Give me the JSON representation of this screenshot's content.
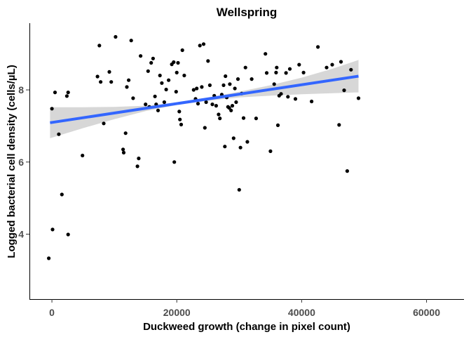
{
  "chart_data": {
    "type": "scatter",
    "title": "Wellspring",
    "xlabel": "Duckweed growth (change in pixel count)",
    "ylabel": "Logged bacterial cell density (cells/µL)",
    "xlim": [
      -3600,
      66000
    ],
    "ylim": [
      2.2,
      9.85
    ],
    "x_ticks": [
      0,
      20000,
      40000,
      60000
    ],
    "x_tick_labels": [
      "0",
      "20000",
      "40000",
      "60000"
    ],
    "y_ticks": [
      4,
      6,
      8
    ],
    "y_tick_labels": [
      "4",
      "6",
      "8"
    ],
    "grid": false,
    "legend": "none",
    "colors": {
      "points": "#000000",
      "fit_line": "#3366ff",
      "confidence_band": "#d3d3d3"
    },
    "series": [
      {
        "type": "scatter",
        "points": [
          {
            "x": -500,
            "y": 3.33
          },
          {
            "x": 0,
            "y": 7.48
          },
          {
            "x": 100,
            "y": 4.13
          },
          {
            "x": 500,
            "y": 7.93
          },
          {
            "x": 1100,
            "y": 6.77
          },
          {
            "x": 1600,
            "y": 5.1
          },
          {
            "x": 2400,
            "y": 7.83
          },
          {
            "x": 2600,
            "y": 7.93
          },
          {
            "x": 2600,
            "y": 3.99
          },
          {
            "x": 4900,
            "y": 6.18
          },
          {
            "x": 7300,
            "y": 8.37
          },
          {
            "x": 7600,
            "y": 9.23
          },
          {
            "x": 7800,
            "y": 8.22
          },
          {
            "x": 8300,
            "y": 7.07
          },
          {
            "x": 9200,
            "y": 8.5
          },
          {
            "x": 9500,
            "y": 8.22
          },
          {
            "x": 10200,
            "y": 9.47
          },
          {
            "x": 11400,
            "y": 6.35
          },
          {
            "x": 11500,
            "y": 6.26
          },
          {
            "x": 11800,
            "y": 6.8
          },
          {
            "x": 12000,
            "y": 8.08
          },
          {
            "x": 12300,
            "y": 8.27
          },
          {
            "x": 12700,
            "y": 9.37
          },
          {
            "x": 13000,
            "y": 7.77
          },
          {
            "x": 13700,
            "y": 5.88
          },
          {
            "x": 13900,
            "y": 6.1
          },
          {
            "x": 14200,
            "y": 8.94
          },
          {
            "x": 15000,
            "y": 7.6
          },
          {
            "x": 15400,
            "y": 8.52
          },
          {
            "x": 15600,
            "y": 7.53
          },
          {
            "x": 15900,
            "y": 8.75
          },
          {
            "x": 16200,
            "y": 8.87
          },
          {
            "x": 16500,
            "y": 7.82
          },
          {
            "x": 16700,
            "y": 7.6
          },
          {
            "x": 17000,
            "y": 7.43
          },
          {
            "x": 17300,
            "y": 8.4
          },
          {
            "x": 17600,
            "y": 8.19
          },
          {
            "x": 18000,
            "y": 7.66
          },
          {
            "x": 18300,
            "y": 8.01
          },
          {
            "x": 18700,
            "y": 8.27
          },
          {
            "x": 19200,
            "y": 8.71
          },
          {
            "x": 19500,
            "y": 8.77
          },
          {
            "x": 19600,
            "y": 6.0
          },
          {
            "x": 19900,
            "y": 7.95
          },
          {
            "x": 20000,
            "y": 8.48
          },
          {
            "x": 20200,
            "y": 8.75
          },
          {
            "x": 20400,
            "y": 7.4
          },
          {
            "x": 20500,
            "y": 7.18
          },
          {
            "x": 20700,
            "y": 7.04
          },
          {
            "x": 20900,
            "y": 9.1
          },
          {
            "x": 21200,
            "y": 8.4
          },
          {
            "x": 22700,
            "y": 8.0
          },
          {
            "x": 23000,
            "y": 7.75
          },
          {
            "x": 23200,
            "y": 8.04
          },
          {
            "x": 23400,
            "y": 7.62
          },
          {
            "x": 23700,
            "y": 9.23
          },
          {
            "x": 24000,
            "y": 8.08
          },
          {
            "x": 24300,
            "y": 9.27
          },
          {
            "x": 24500,
            "y": 6.95
          },
          {
            "x": 24700,
            "y": 7.66
          },
          {
            "x": 25000,
            "y": 8.8
          },
          {
            "x": 25300,
            "y": 8.13
          },
          {
            "x": 25700,
            "y": 7.6
          },
          {
            "x": 26000,
            "y": 7.84
          },
          {
            "x": 26300,
            "y": 7.56
          },
          {
            "x": 26700,
            "y": 7.32
          },
          {
            "x": 26900,
            "y": 7.21
          },
          {
            "x": 27200,
            "y": 7.87
          },
          {
            "x": 27500,
            "y": 8.13
          },
          {
            "x": 27700,
            "y": 6.43
          },
          {
            "x": 27800,
            "y": 8.38
          },
          {
            "x": 28000,
            "y": 7.79
          },
          {
            "x": 28200,
            "y": 7.53
          },
          {
            "x": 28400,
            "y": 7.5
          },
          {
            "x": 28500,
            "y": 8.16
          },
          {
            "x": 28700,
            "y": 7.43
          },
          {
            "x": 28900,
            "y": 7.56
          },
          {
            "x": 29100,
            "y": 6.66
          },
          {
            "x": 29300,
            "y": 8.04
          },
          {
            "x": 29500,
            "y": 7.66
          },
          {
            "x": 29800,
            "y": 8.3
          },
          {
            "x": 30000,
            "y": 5.23
          },
          {
            "x": 30200,
            "y": 6.4
          },
          {
            "x": 30400,
            "y": 7.9
          },
          {
            "x": 30700,
            "y": 7.22
          },
          {
            "x": 31000,
            "y": 8.62
          },
          {
            "x": 31300,
            "y": 6.56
          },
          {
            "x": 32000,
            "y": 8.3
          },
          {
            "x": 32700,
            "y": 7.21
          },
          {
            "x": 34200,
            "y": 9.0
          },
          {
            "x": 34400,
            "y": 8.47
          },
          {
            "x": 35000,
            "y": 6.3
          },
          {
            "x": 35600,
            "y": 8.16
          },
          {
            "x": 35900,
            "y": 8.48
          },
          {
            "x": 36000,
            "y": 8.62
          },
          {
            "x": 36200,
            "y": 7.02
          },
          {
            "x": 36400,
            "y": 7.84
          },
          {
            "x": 36700,
            "y": 7.89
          },
          {
            "x": 37500,
            "y": 8.47
          },
          {
            "x": 37800,
            "y": 7.81
          },
          {
            "x": 38100,
            "y": 8.58
          },
          {
            "x": 39000,
            "y": 7.75
          },
          {
            "x": 39600,
            "y": 8.7
          },
          {
            "x": 40300,
            "y": 8.48
          },
          {
            "x": 41600,
            "y": 7.68
          },
          {
            "x": 42600,
            "y": 9.19
          },
          {
            "x": 44000,
            "y": 8.62
          },
          {
            "x": 44900,
            "y": 8.7
          },
          {
            "x": 46000,
            "y": 7.03
          },
          {
            "x": 46300,
            "y": 8.78
          },
          {
            "x": 46800,
            "y": 7.99
          },
          {
            "x": 47300,
            "y": 5.75
          },
          {
            "x": 47900,
            "y": 8.56
          },
          {
            "x": 49100,
            "y": 7.77
          }
        ]
      },
      {
        "type": "line",
        "fit": "linear",
        "x": [
          -300,
          49100
        ],
        "y": [
          7.09,
          8.38
        ],
        "band_x": [
          -300,
          5000,
          10000,
          15000,
          20000,
          25000,
          30000,
          35000,
          40000,
          45000,
          49100
        ],
        "band_lower": [
          6.66,
          6.94,
          7.19,
          7.41,
          7.58,
          7.7,
          7.79,
          7.84,
          7.88,
          7.91,
          7.93
        ],
        "band_upper": [
          7.52,
          7.52,
          7.53,
          7.56,
          7.65,
          7.79,
          7.95,
          8.13,
          8.34,
          8.59,
          8.83
        ]
      }
    ]
  }
}
